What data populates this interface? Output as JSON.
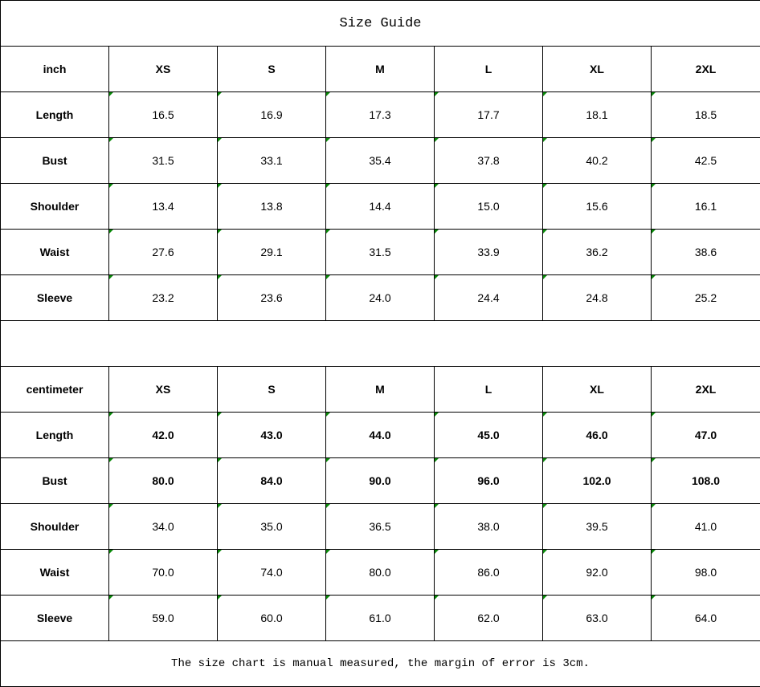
{
  "title": "Size Guide",
  "indicator_color": "#0a8a0a",
  "inch": {
    "unit": "inch",
    "sizes": [
      "XS",
      "S",
      "M",
      "L",
      "XL",
      "2XL"
    ],
    "rows": [
      {
        "label": "Length",
        "values": [
          "16.5",
          "16.9",
          "17.3",
          "17.7",
          "18.1",
          "18.5"
        ]
      },
      {
        "label": "Bust",
        "values": [
          "31.5",
          "33.1",
          "35.4",
          "37.8",
          "40.2",
          "42.5"
        ]
      },
      {
        "label": "Shoulder",
        "values": [
          "13.4",
          "13.8",
          "14.4",
          "15.0",
          "15.6",
          "16.1"
        ]
      },
      {
        "label": "Waist",
        "values": [
          "27.6",
          "29.1",
          "31.5",
          "33.9",
          "36.2",
          "38.6"
        ]
      },
      {
        "label": "Sleeve",
        "values": [
          "23.2",
          "23.6",
          "24.0",
          "24.4",
          "24.8",
          "25.2"
        ]
      }
    ]
  },
  "centimeter": {
    "unit": "centimeter",
    "sizes": [
      "XS",
      "S",
      "M",
      "L",
      "XL",
      "2XL"
    ],
    "rows": [
      {
        "label": "Length",
        "bold": true,
        "values": [
          "42.0",
          "43.0",
          "44.0",
          "45.0",
          "46.0",
          "47.0"
        ]
      },
      {
        "label": "Bust",
        "bold": true,
        "values": [
          "80.0",
          "84.0",
          "90.0",
          "96.0",
          "102.0",
          "108.0"
        ]
      },
      {
        "label": "Shoulder",
        "values": [
          "34.0",
          "35.0",
          "36.5",
          "38.0",
          "39.5",
          "41.0"
        ]
      },
      {
        "label": "Waist",
        "values": [
          "70.0",
          "74.0",
          "80.0",
          "86.0",
          "92.0",
          "98.0"
        ]
      },
      {
        "label": "Sleeve",
        "values": [
          "59.0",
          "60.0",
          "61.0",
          "62.0",
          "63.0",
          "64.0"
        ]
      }
    ]
  },
  "note": "The size chart is manual measured, the margin of error is 3cm."
}
